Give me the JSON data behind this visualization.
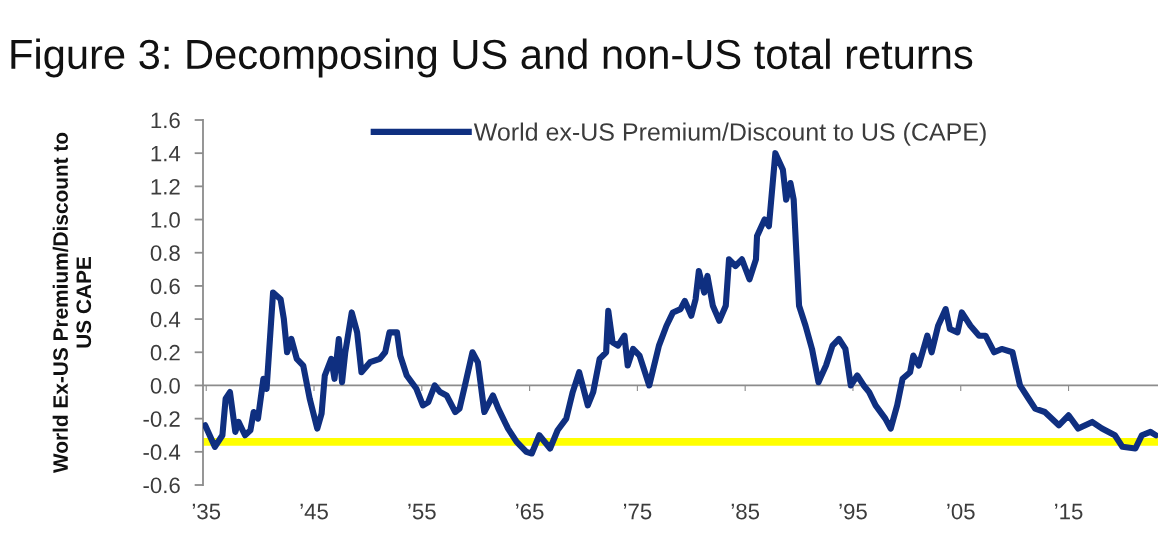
{
  "chart_data": {
    "type": "line",
    "title": "Figure 3: Decomposing US and non-US total returns",
    "ylabel": "World Ex-US Premium/Discount to\nUS CAPE",
    "xlim": [
      1934.7,
      2023.3
    ],
    "xticks": [
      {
        "value": 1935,
        "label": "’35"
      },
      {
        "value": 1945,
        "label": "’45"
      },
      {
        "value": 1955,
        "label": "’55"
      },
      {
        "value": 1965,
        "label": "’65"
      },
      {
        "value": 1975,
        "label": "’75"
      },
      {
        "value": 1985,
        "label": "’85"
      },
      {
        "value": 1995,
        "label": "’95"
      },
      {
        "value": 2005,
        "label": "’05"
      },
      {
        "value": 2015,
        "label": "’15"
      }
    ],
    "ylim": [
      -0.6,
      1.6
    ],
    "yticks": [
      {
        "value": -0.6,
        "label": "-0.6"
      },
      {
        "value": -0.4,
        "label": "-0.4"
      },
      {
        "value": -0.2,
        "label": "-0.2"
      },
      {
        "value": 0,
        "label": "0.0"
      },
      {
        "value": 0.2,
        "label": "0.2"
      },
      {
        "value": 0.4,
        "label": "0.4"
      },
      {
        "value": 0.6,
        "label": "0.6"
      },
      {
        "value": 0.8,
        "label": "0.8"
      },
      {
        "value": 1.0,
        "label": "1.0"
      },
      {
        "value": 1.2,
        "label": "1.2"
      },
      {
        "value": 1.4,
        "label": "1.4"
      },
      {
        "value": 1.6,
        "label": "1.6"
      }
    ],
    "grid": false,
    "legend": "top",
    "ref_lines": [
      {
        "axis": "y",
        "value": 0,
        "color": "#8c8c8c"
      },
      {
        "axis": "y",
        "value": -0.34,
        "color": "#ffff00"
      }
    ],
    "series": [
      {
        "name": "World ex-US Premium/Discount to US (CAPE)",
        "color": "#0f2f80",
        "x": [
          1934.9,
          1935.8,
          1936.5,
          1936.8,
          1937.2,
          1937.7,
          1938.0,
          1938.6,
          1939.1,
          1939.4,
          1939.8,
          1940.3,
          1940.6,
          1941.2,
          1941.9,
          1942.2,
          1942.5,
          1942.9,
          1943.4,
          1944.0,
          1944.6,
          1945.3,
          1945.7,
          1946.0,
          1946.6,
          1946.9,
          1947.3,
          1947.6,
          1947.9,
          1948.5,
          1949.0,
          1949.4,
          1950.2,
          1951.1,
          1951.6,
          1952.0,
          1952.7,
          1953.0,
          1953.6,
          1954.5,
          1955.1,
          1955.6,
          1956.2,
          1956.7,
          1957.3,
          1958.1,
          1958.5,
          1959.0,
          1959.7,
          1960.2,
          1960.8,
          1961.6,
          1962.1,
          1963.0,
          1963.8,
          1964.7,
          1965.2,
          1965.9,
          1966.9,
          1967.6,
          1968.4,
          1969.0,
          1969.6,
          1970.4,
          1970.9,
          1971.5,
          1972.1,
          1972.3,
          1972.7,
          1973.2,
          1973.8,
          1974.1,
          1974.6,
          1975.2,
          1976.1,
          1977.0,
          1977.7,
          1978.3,
          1979.0,
          1979.4,
          1980.0,
          1980.4,
          1980.7,
          1981.2,
          1981.5,
          1982.0,
          1982.6,
          1983.2,
          1983.5,
          1984.1,
          1984.7,
          1985.4,
          1986.0,
          1986.1,
          1986.8,
          1987.2,
          1987.8,
          1988.5,
          1988.8,
          1989.2,
          1989.5,
          1990.0,
          1990.6,
          1991.2,
          1991.8,
          1992.5,
          1993.1,
          1993.7,
          1994.3,
          1994.8,
          1995.4,
          1996.0,
          1996.5,
          1997.1,
          1998.0,
          1998.5,
          1999.1,
          1999.6,
          2000.3,
          2000.6,
          2001.1,
          2001.9,
          2002.3,
          2002.9,
          2003.6,
          2004.0,
          2004.7,
          2005.1,
          2005.9,
          2006.7,
          2007.3,
          2008.1,
          2008.8,
          2009.8,
          2010.5,
          2011.3,
          2011.9,
          2012.8,
          2014.1,
          2015.0,
          2015.9,
          2017.2,
          2018.1,
          2019.3,
          2020.0,
          2021.2,
          2021.8,
          2022.6,
          2023.1
        ],
        "values": [
          -0.24,
          -0.37,
          -0.3,
          -0.08,
          -0.04,
          -0.28,
          -0.22,
          -0.3,
          -0.27,
          -0.16,
          -0.2,
          0.04,
          -0.02,
          0.56,
          0.52,
          0.4,
          0.2,
          0.28,
          0.16,
          0.12,
          -0.08,
          -0.26,
          -0.17,
          0.06,
          0.16,
          0.04,
          0.28,
          0.02,
          0.2,
          0.44,
          0.32,
          0.08,
          0.14,
          0.16,
          0.2,
          0.32,
          0.32,
          0.18,
          0.06,
          -0.02,
          -0.12,
          -0.1,
          0,
          -0.04,
          -0.06,
          -0.16,
          -0.14,
          0,
          0.2,
          0.14,
          -0.16,
          -0.06,
          -0.14,
          -0.26,
          -0.34,
          -0.4,
          -0.41,
          -0.3,
          -0.38,
          -0.27,
          -0.2,
          -0.04,
          0.08,
          -0.12,
          -0.04,
          0.16,
          0.2,
          0.45,
          0.26,
          0.24,
          0.3,
          0.12,
          0.22,
          0.18,
          0,
          0.24,
          0.36,
          0.44,
          0.46,
          0.51,
          0.42,
          0.52,
          0.69,
          0.56,
          0.66,
          0.48,
          0.39,
          0.48,
          0.76,
          0.72,
          0.76,
          0.64,
          0.76,
          0.9,
          1.0,
          0.96,
          1.4,
          1.3,
          1.12,
          1.22,
          1.12,
          0.48,
          0.36,
          0.22,
          0.02,
          0.12,
          0.24,
          0.28,
          0.22,
          0,
          0.06,
          0,
          -0.04,
          -0.12,
          -0.2,
          -0.26,
          -0.12,
          0.04,
          0.08,
          0.18,
          0.12,
          0.3,
          0.2,
          0.36,
          0.46,
          0.34,
          0.32,
          0.44,
          0.36,
          0.3,
          0.3,
          0.2,
          0.22,
          0.2,
          0,
          -0.08,
          -0.14,
          -0.16,
          -0.24,
          -0.18,
          -0.26,
          -0.22,
          -0.26,
          -0.3,
          -0.37,
          -0.38,
          -0.3,
          -0.28,
          -0.3
        ]
      }
    ]
  }
}
